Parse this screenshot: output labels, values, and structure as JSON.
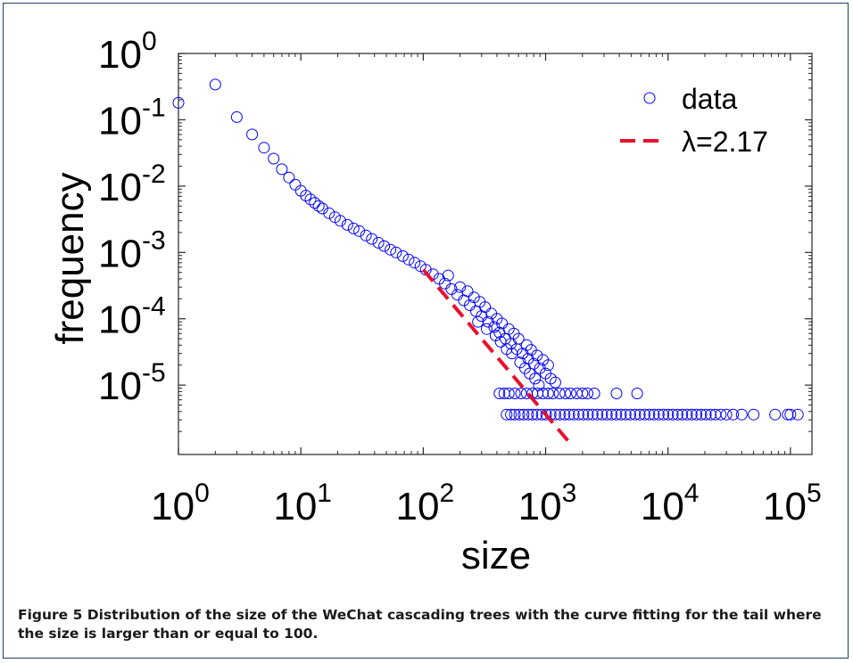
{
  "chart_data": {
    "type": "scatter",
    "xlabel": "size",
    "ylabel": "frequency",
    "xscale": "log",
    "yscale": "log",
    "xlim": [
      1,
      150000
    ],
    "ylim": [
      9e-07,
      1
    ],
    "x_ticks": [
      {
        "value": 1,
        "base": "10",
        "exp": "0"
      },
      {
        "value": 10,
        "base": "10",
        "exp": "1"
      },
      {
        "value": 100,
        "base": "10",
        "exp": "2"
      },
      {
        "value": 1000,
        "base": "10",
        "exp": "3"
      },
      {
        "value": 10000,
        "base": "10",
        "exp": "4"
      },
      {
        "value": 100000,
        "base": "10",
        "exp": "5"
      }
    ],
    "y_ticks": [
      {
        "value": 1,
        "base": "10",
        "exp": "0"
      },
      {
        "value": 0.1,
        "base": "10",
        "exp": "-1"
      },
      {
        "value": 0.01,
        "base": "10",
        "exp": "-2"
      },
      {
        "value": 0.001,
        "base": "10",
        "exp": "-3"
      },
      {
        "value": 0.0001,
        "base": "10",
        "exp": "-4"
      },
      {
        "value": 1e-05,
        "base": "10",
        "exp": "-5"
      }
    ],
    "legend": {
      "position": "top-right"
    },
    "series": [
      {
        "name": "data",
        "marker": "circle-open",
        "color": "#0000ff",
        "points": [
          [
            1,
            0.18
          ],
          [
            2,
            0.34
          ],
          [
            3,
            0.11
          ],
          [
            4,
            0.06
          ],
          [
            5,
            0.038
          ],
          [
            6,
            0.026
          ],
          [
            7,
            0.018
          ],
          [
            8,
            0.0135
          ],
          [
            9,
            0.0105
          ],
          [
            10,
            0.0085
          ],
          [
            11,
            0.0072
          ],
          [
            12,
            0.0063
          ],
          [
            13,
            0.0056
          ],
          [
            14,
            0.005
          ],
          [
            15,
            0.0046
          ],
          [
            17,
            0.0039
          ],
          [
            19,
            0.0034
          ],
          [
            21,
            0.003
          ],
          [
            24,
            0.0026
          ],
          [
            27,
            0.0023
          ],
          [
            30,
            0.0021
          ],
          [
            34,
            0.0018
          ],
          [
            38,
            0.0016
          ],
          [
            43,
            0.0014
          ],
          [
            48,
            0.00125
          ],
          [
            54,
            0.0011
          ],
          [
            60,
            0.001
          ],
          [
            68,
            0.00088
          ],
          [
            76,
            0.00078
          ],
          [
            85,
            0.0007
          ],
          [
            95,
            0.00062
          ],
          [
            105,
            0.00055
          ],
          [
            120,
            0.00047
          ],
          [
            135,
            0.0004
          ],
          [
            150,
            0.00034
          ],
          [
            170,
            0.00028
          ],
          [
            190,
            0.00023
          ],
          [
            215,
            0.00019
          ],
          [
            240,
            0.00016
          ],
          [
            270,
            0.00013
          ],
          [
            300,
            0.00011
          ],
          [
            340,
            9e-05
          ],
          [
            380,
            7.5e-05
          ],
          [
            420,
            6.2e-05
          ],
          [
            470,
            5e-05
          ],
          [
            520,
            4.2e-05
          ],
          [
            580,
            3.5e-05
          ],
          [
            650,
            3e-05
          ],
          [
            720,
            2.5e-05
          ],
          [
            800,
            2.1e-05
          ],
          [
            900,
            1.8e-05
          ],
          [
            1000,
            1.5e-05
          ],
          [
            1100,
            1.25e-05
          ],
          [
            1200,
            1.1e-05
          ],
          [
            160,
            0.00045
          ],
          [
            200,
            0.0003
          ],
          [
            230,
            0.00026
          ],
          [
            260,
            0.00021
          ],
          [
            290,
            0.00018
          ],
          [
            320,
            0.00015
          ],
          [
            360,
            0.00012
          ],
          [
            400,
            0.0001
          ],
          [
            440,
            8.5e-05
          ],
          [
            500,
            7e-05
          ],
          [
            550,
            6e-05
          ],
          [
            600,
            5e-05
          ],
          [
            700,
            4e-05
          ],
          [
            760,
            3.4e-05
          ],
          [
            850,
            2.8e-05
          ],
          [
            950,
            2.4e-05
          ],
          [
            1050,
            2e-05
          ],
          [
            280,
            9e-05
          ],
          [
            330,
            7e-05
          ],
          [
            390,
            5.6e-05
          ],
          [
            430,
            4.5e-05
          ],
          [
            480,
            3.5e-05
          ],
          [
            530,
            3e-05
          ],
          [
            620,
            2.2e-05
          ],
          [
            680,
            1.8e-05
          ],
          [
            740,
            1.5e-05
          ],
          [
            820,
            1.25e-05
          ],
          [
            880,
            1e-05
          ],
          [
            420,
            7.5e-06
          ],
          [
            460,
            7.5e-06
          ],
          [
            500,
            7.5e-06
          ],
          [
            560,
            7.5e-06
          ],
          [
            630,
            7.5e-06
          ],
          [
            700,
            7.5e-06
          ],
          [
            780,
            7.5e-06
          ],
          [
            860,
            7.5e-06
          ],
          [
            950,
            7.5e-06
          ],
          [
            1050,
            7.5e-06
          ],
          [
            1150,
            7.5e-06
          ],
          [
            1300,
            7.5e-06
          ],
          [
            1450,
            7.5e-06
          ],
          [
            1600,
            7.5e-06
          ],
          [
            1800,
            7.5e-06
          ],
          [
            2000,
            7.5e-06
          ],
          [
            2200,
            7.5e-06
          ],
          [
            2500,
            7.5e-06
          ],
          [
            3800,
            7.5e-06
          ],
          [
            5600,
            7.5e-06
          ],
          [
            480,
            3.6e-06
          ],
          [
            520,
            3.6e-06
          ],
          [
            560,
            3.6e-06
          ],
          [
            610,
            3.6e-06
          ],
          [
            660,
            3.6e-06
          ],
          [
            720,
            3.6e-06
          ],
          [
            780,
            3.6e-06
          ],
          [
            850,
            3.6e-06
          ],
          [
            930,
            3.6e-06
          ],
          [
            1010,
            3.6e-06
          ],
          [
            1100,
            3.6e-06
          ],
          [
            1200,
            3.6e-06
          ],
          [
            1310,
            3.6e-06
          ],
          [
            1430,
            3.6e-06
          ],
          [
            1560,
            3.6e-06
          ],
          [
            1700,
            3.6e-06
          ],
          [
            1860,
            3.6e-06
          ],
          [
            2030,
            3.6e-06
          ],
          [
            2220,
            3.6e-06
          ],
          [
            2420,
            3.6e-06
          ],
          [
            2650,
            3.6e-06
          ],
          [
            2900,
            3.6e-06
          ],
          [
            3170,
            3.6e-06
          ],
          [
            3460,
            3.6e-06
          ],
          [
            3780,
            3.6e-06
          ],
          [
            4130,
            3.6e-06
          ],
          [
            4510,
            3.6e-06
          ],
          [
            4930,
            3.6e-06
          ],
          [
            5390,
            3.6e-06
          ],
          [
            5890,
            3.6e-06
          ],
          [
            6440,
            3.6e-06
          ],
          [
            7040,
            3.6e-06
          ],
          [
            7690,
            3.6e-06
          ],
          [
            8400,
            3.6e-06
          ],
          [
            9180,
            3.6e-06
          ],
          [
            10030,
            3.6e-06
          ],
          [
            10960,
            3.6e-06
          ],
          [
            11980,
            3.6e-06
          ],
          [
            13090,
            3.6e-06
          ],
          [
            14300,
            3.6e-06
          ],
          [
            15630,
            3.6e-06
          ],
          [
            17080,
            3.6e-06
          ],
          [
            18670,
            3.6e-06
          ],
          [
            20400,
            3.6e-06
          ],
          [
            22300,
            3.6e-06
          ],
          [
            24400,
            3.6e-06
          ],
          [
            27000,
            3.6e-06
          ],
          [
            30000,
            3.6e-06
          ],
          [
            34000,
            3.6e-06
          ],
          [
            40000,
            3.6e-06
          ],
          [
            50000,
            3.6e-06
          ],
          [
            75000,
            3.6e-06
          ],
          [
            95000,
            3.6e-06
          ],
          [
            100000,
            3.6e-06
          ],
          [
            115000,
            3.6e-06
          ]
        ]
      },
      {
        "name": "λ=2.17",
        "style": "dashed-line",
        "color": "#e8102c",
        "exponent": 2.17,
        "points": [
          [
            100,
            0.00055
          ],
          [
            1600,
            1.3e-06
          ]
        ]
      }
    ],
    "caption": "Figure 5 Distribution of the size of the WeChat cascading trees with the curve fitting for the tail where the size is larger than or equal to 100."
  }
}
